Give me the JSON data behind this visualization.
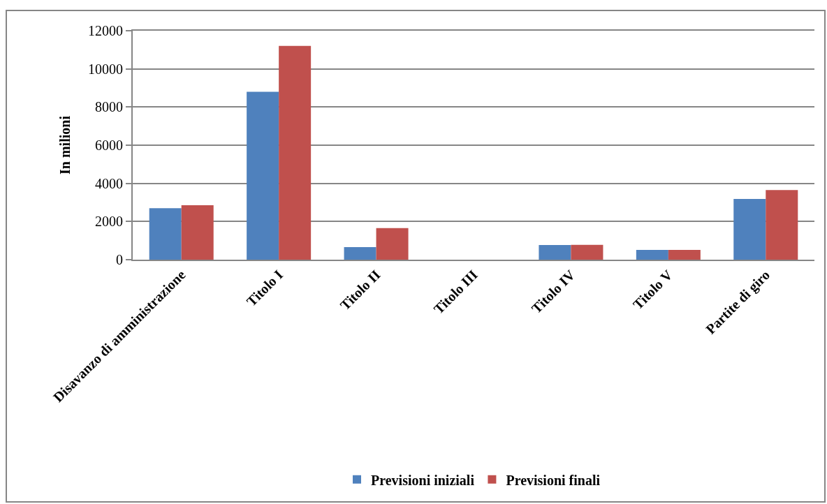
{
  "chart_data": {
    "type": "bar",
    "ylabel": "In milioni",
    "categories": [
      "Disavanzo di amministrazione",
      "Titolo I",
      "Titolo II",
      "Titolo III",
      "Titolo IV",
      "Titolo V",
      "Partite di giro"
    ],
    "series": [
      {
        "name": "Previsioni iniziali",
        "color": "#4f81bd",
        "values": [
          2700,
          8800,
          660,
          0,
          770,
          510,
          3180
        ]
      },
      {
        "name": "Previsioni finali",
        "color": "#c0504d",
        "values": [
          2850,
          11200,
          1660,
          0,
          780,
          510,
          3650
        ]
      }
    ],
    "ylim": [
      0,
      12000
    ],
    "yticks": [
      0,
      2000,
      4000,
      6000,
      8000,
      10000,
      12000
    ],
    "grid": "y",
    "legend": "bottom"
  }
}
